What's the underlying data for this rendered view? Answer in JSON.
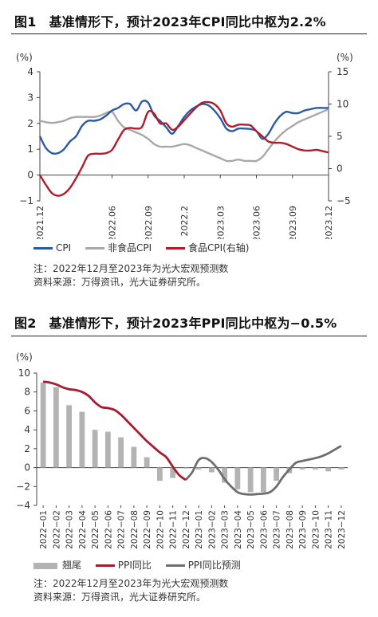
{
  "figure1": {
    "number": "图1",
    "title": "基准情形下，预计2023年CPI同比中枢为2.2%",
    "left_unit": "(%)",
    "right_unit": "(%)",
    "legend": {
      "cpi": "CPI",
      "nonfood": "非食品CPI",
      "food": "食品CPI(右轴)"
    },
    "note": "注：2022年12月至2023年为光大宏观预测数",
    "source": "资料来源：万得资讯，光大证券研究所。"
  },
  "figure2": {
    "number": "图2",
    "title": "基准情形下，预计2023年PPI同比中枢为−0.5%",
    "unit": "(%)",
    "legend": {
      "tail": "翘尾",
      "ppi": "PPI同比",
      "forecast": "PPI同比预测"
    },
    "note": "注：2022年12月至2023年为光大宏观预测数",
    "source": "资料来源：万得资讯，光大证券研究所。"
  },
  "colors": {
    "cpi": "#2a5aa5",
    "nonfood": "#a8a8a8",
    "food": "#b01c2a",
    "bars": "#b3b3b3",
    "ppi": "#a51c30",
    "forecast": "#6e6e6e"
  },
  "chart_data": [
    {
      "type": "line",
      "title": "基准情形下，预计2023年CPI同比中枢为2.2%",
      "x_ticks": [
        "2021.12",
        "2022.06",
        "2022.09",
        "2022.2",
        "2023.03",
        "2023.06",
        "2023.09",
        "2023.12"
      ],
      "x_tick_months": [
        0,
        6,
        9,
        12,
        15,
        18,
        21,
        24
      ],
      "left_axis": {
        "ticks": [
          -1,
          0,
          1,
          2,
          3,
          4
        ],
        "range": [
          -1,
          4
        ]
      },
      "right_axis": {
        "ticks": [
          -5,
          0,
          5,
          10,
          15
        ],
        "range": [
          -5,
          15
        ]
      },
      "series": [
        {
          "name": "CPI",
          "axis": "left",
          "x": [
            0,
            0.5,
            1,
            1.5,
            2,
            2.5,
            3,
            3.5,
            4,
            4.5,
            5,
            5.5,
            6,
            6.5,
            7,
            7.5,
            8,
            8.5,
            9,
            9.5,
            10,
            10.5,
            11,
            11.5,
            12,
            12.5,
            13,
            13.5,
            14,
            14.5,
            15,
            15.5,
            16,
            16.5,
            17,
            17.5,
            18,
            18.5,
            19,
            19.5,
            20,
            20.5,
            21,
            21.5,
            22,
            22.5,
            23,
            23.5,
            24
          ],
          "values": [
            1.5,
            1.05,
            0.85,
            0.85,
            1.0,
            1.3,
            1.5,
            1.9,
            2.1,
            2.1,
            2.15,
            2.3,
            2.5,
            2.6,
            2.75,
            2.75,
            2.5,
            2.85,
            2.8,
            2.3,
            2.1,
            1.85,
            1.6,
            1.9,
            2.25,
            2.5,
            2.65,
            2.75,
            2.7,
            2.5,
            2.2,
            1.8,
            1.7,
            1.8,
            1.8,
            1.78,
            1.7,
            1.4,
            1.6,
            2.0,
            2.3,
            2.45,
            2.4,
            2.4,
            2.5,
            2.55,
            2.6,
            2.6,
            2.6
          ]
        },
        {
          "name": "非食品CPI",
          "axis": "left",
          "x": [
            0,
            0.5,
            1,
            1.5,
            2,
            2.5,
            3,
            3.5,
            4,
            4.5,
            5,
            5.5,
            6,
            6.5,
            7,
            7.5,
            8,
            8.5,
            9,
            9.5,
            10,
            10.5,
            11,
            11.5,
            12,
            12.5,
            13,
            13.5,
            14,
            14.5,
            15,
            15.5,
            16,
            16.5,
            17,
            17.5,
            18,
            18.5,
            19,
            19.5,
            20,
            20.5,
            21,
            21.5,
            22,
            22.5,
            23,
            23.5,
            24
          ],
          "values": [
            2.1,
            2.05,
            2.02,
            2.05,
            2.1,
            2.2,
            2.25,
            2.25,
            2.25,
            2.25,
            2.3,
            2.4,
            2.45,
            2.1,
            1.85,
            1.75,
            1.65,
            1.55,
            1.4,
            1.2,
            1.1,
            1.1,
            1.1,
            1.15,
            1.2,
            1.15,
            1.05,
            0.95,
            0.85,
            0.75,
            0.65,
            0.55,
            0.55,
            0.6,
            0.55,
            0.55,
            0.55,
            0.7,
            1.0,
            1.3,
            1.55,
            1.75,
            1.9,
            2.05,
            2.15,
            2.25,
            2.35,
            2.45,
            2.55
          ]
        },
        {
          "name": "食品CPI(右轴)",
          "axis": "right",
          "x": [
            0,
            0.5,
            1,
            1.5,
            2,
            2.5,
            3,
            3.5,
            4,
            4.5,
            5,
            5.5,
            6,
            6.5,
            7,
            7.5,
            8,
            8.5,
            9,
            9.5,
            10,
            10.5,
            11,
            11.5,
            12,
            12.5,
            13,
            13.5,
            14,
            14.5,
            15,
            15.5,
            16,
            16.5,
            17,
            17.5,
            18,
            18.5,
            19,
            19.5,
            20,
            20.5,
            21,
            21.5,
            22,
            22.5,
            23,
            23.5,
            24
          ],
          "values": [
            -1.0,
            -2.5,
            -3.8,
            -4.2,
            -3.9,
            -3.0,
            -1.5,
            0.2,
            2.0,
            2.3,
            2.3,
            2.4,
            2.9,
            4.5,
            6.0,
            6.3,
            6.2,
            6.5,
            8.8,
            8.5,
            7.0,
            7.0,
            6.0,
            6.5,
            7.5,
            8.5,
            9.5,
            10.2,
            10.3,
            10.0,
            9.0,
            7.0,
            6.5,
            6.8,
            6.8,
            6.7,
            5.8,
            5.0,
            4.2,
            4.0,
            4.0,
            3.8,
            3.4,
            3.0,
            2.8,
            2.8,
            2.9,
            2.7,
            2.5
          ]
        }
      ]
    },
    {
      "type": "bar",
      "title": "基准情形下，预计2023年PPI同比中枢为−0.5%",
      "categories": [
        "2022−01",
        "2022−02",
        "2022−03",
        "2022−04",
        "2022−05",
        "2022−06",
        "2022−07",
        "2022−08",
        "2022−09",
        "2022−10",
        "2022−11",
        "2022−12",
        "2023−01",
        "2023−02",
        "2023−03",
        "2023−04",
        "2023−05",
        "2023−06",
        "2023−07",
        "2023−08",
        "2023−09",
        "2023−10",
        "2023−11",
        "2023−12"
      ],
      "y_axis": {
        "ticks": [
          -4,
          -2,
          0,
          2,
          4,
          6,
          8,
          10
        ],
        "range": [
          -4,
          10
        ]
      },
      "series": [
        {
          "name": "翘尾",
          "kind": "bar",
          "values": [
            9.0,
            8.5,
            6.6,
            5.9,
            4.0,
            3.8,
            3.2,
            2.2,
            1.1,
            -1.4,
            -1.1,
            -0.1,
            -0.2,
            -0.5,
            -1.6,
            -2.3,
            -2.6,
            -2.6,
            -1.4,
            -0.6,
            -0.2,
            -0.2,
            -0.4,
            -0.2
          ]
        },
        {
          "name": "PPI同比",
          "kind": "line",
          "x": [
            0,
            0.5,
            1,
            1.5,
            2,
            2.5,
            3,
            3.5,
            4,
            4.5,
            5,
            5.5,
            6,
            6.5,
            7,
            7.5,
            8,
            8.5,
            9,
            9.5,
            10,
            10.5,
            11
          ],
          "values": [
            9.1,
            9.0,
            8.8,
            8.5,
            8.3,
            8.2,
            8.0,
            7.6,
            6.9,
            6.4,
            6.3,
            6.1,
            5.6,
            4.9,
            4.2,
            3.5,
            2.8,
            2.2,
            1.6,
            1.1,
            0.1,
            -0.8,
            -1.3
          ]
        },
        {
          "name": "PPI同比预测",
          "kind": "line",
          "x": [
            11,
            11.5,
            12,
            12.5,
            13,
            13.5,
            14,
            14.5,
            15,
            15.5,
            16,
            16.5,
            17,
            17.5,
            18,
            18.5,
            19,
            19.5,
            20,
            20.5,
            21,
            21.5,
            22,
            22.5,
            23
          ],
          "values": [
            -1.3,
            -0.5,
            0.8,
            1.0,
            0.6,
            -0.2,
            -1.2,
            -2.0,
            -2.6,
            -2.8,
            -2.85,
            -2.8,
            -2.75,
            -2.6,
            -2.0,
            -1.0,
            -0.2,
            0.5,
            0.7,
            0.85,
            1.0,
            1.2,
            1.5,
            1.9,
            2.3
          ]
        }
      ]
    }
  ]
}
